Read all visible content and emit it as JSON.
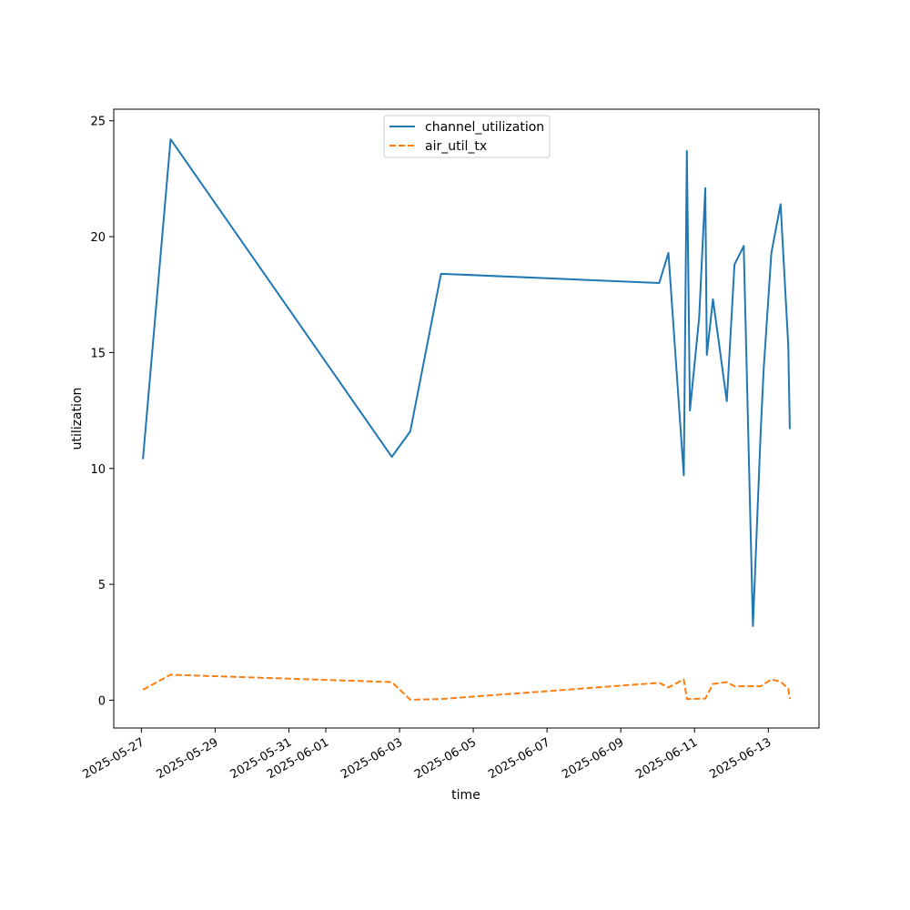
{
  "chart_data": {
    "type": "line",
    "xlabel": "time",
    "ylabel": "utilization",
    "ylim": [
      -1.2,
      25.5
    ],
    "xlim": [
      "2025-05-26T06:00",
      "2025-06-14T09:00"
    ],
    "yticks": [
      0,
      5,
      10,
      15,
      20,
      25
    ],
    "xticks": [
      "2025-05-27",
      "2025-05-29",
      "2025-05-31",
      "2025-06-01",
      "2025-06-03",
      "2025-06-05",
      "2025-06-07",
      "2025-06-09",
      "2025-06-11",
      "2025-06-13"
    ],
    "grid": false,
    "legend": "upper-center",
    "series": [
      {
        "name": "channel_utilization",
        "color": "#1f77b4",
        "style": "solid",
        "points": [
          [
            "2025-05-27T01:00",
            10.4
          ],
          [
            "2025-05-27T19:00",
            24.2
          ],
          [
            "2025-06-02T19:00",
            10.5
          ],
          [
            "2025-06-03T07:00",
            11.6
          ],
          [
            "2025-06-04T03:00",
            18.4
          ],
          [
            "2025-06-10T01:00",
            18.0
          ],
          [
            "2025-06-10T07:00",
            19.3
          ],
          [
            "2025-06-10T17:00",
            9.7
          ],
          [
            "2025-06-10T19:00",
            23.7
          ],
          [
            "2025-06-10T21:00",
            12.5
          ],
          [
            "2025-06-11T03:00",
            16.5
          ],
          [
            "2025-06-11T07:00",
            22.1
          ],
          [
            "2025-06-11T08:00",
            14.9
          ],
          [
            "2025-06-11T12:00",
            17.3
          ],
          [
            "2025-06-11T21:00",
            12.9
          ],
          [
            "2025-06-12T02:00",
            18.8
          ],
          [
            "2025-06-12T08:00",
            19.6
          ],
          [
            "2025-06-12T14:00",
            3.2
          ],
          [
            "2025-06-12T19:00",
            11.5
          ],
          [
            "2025-06-12T21:00",
            14.3
          ],
          [
            "2025-06-13T02:00",
            19.3
          ],
          [
            "2025-06-13T08:00",
            21.4
          ],
          [
            "2025-06-13T13:00",
            15.3
          ],
          [
            "2025-06-13T14:00",
            11.7
          ]
        ]
      },
      {
        "name": "air_util_tx",
        "color": "#ff7f0e",
        "style": "dashed",
        "points": [
          [
            "2025-05-27T01:00",
            0.45
          ],
          [
            "2025-05-27T19:00",
            1.1
          ],
          [
            "2025-06-02T19:00",
            0.78
          ],
          [
            "2025-06-03T07:00",
            0.02
          ],
          [
            "2025-06-04T03:00",
            0.05
          ],
          [
            "2025-06-10T01:00",
            0.75
          ],
          [
            "2025-06-10T07:00",
            0.55
          ],
          [
            "2025-06-10T17:00",
            0.9
          ],
          [
            "2025-06-10T19:00",
            0.05
          ],
          [
            "2025-06-11T07:00",
            0.07
          ],
          [
            "2025-06-11T12:00",
            0.7
          ],
          [
            "2025-06-11T21:00",
            0.78
          ],
          [
            "2025-06-12T02:00",
            0.6
          ],
          [
            "2025-06-12T19:00",
            0.6
          ],
          [
            "2025-06-13T02:00",
            0.9
          ],
          [
            "2025-06-13T08:00",
            0.8
          ],
          [
            "2025-06-13T13:00",
            0.5
          ],
          [
            "2025-06-13T14:00",
            0.05
          ]
        ]
      }
    ]
  }
}
